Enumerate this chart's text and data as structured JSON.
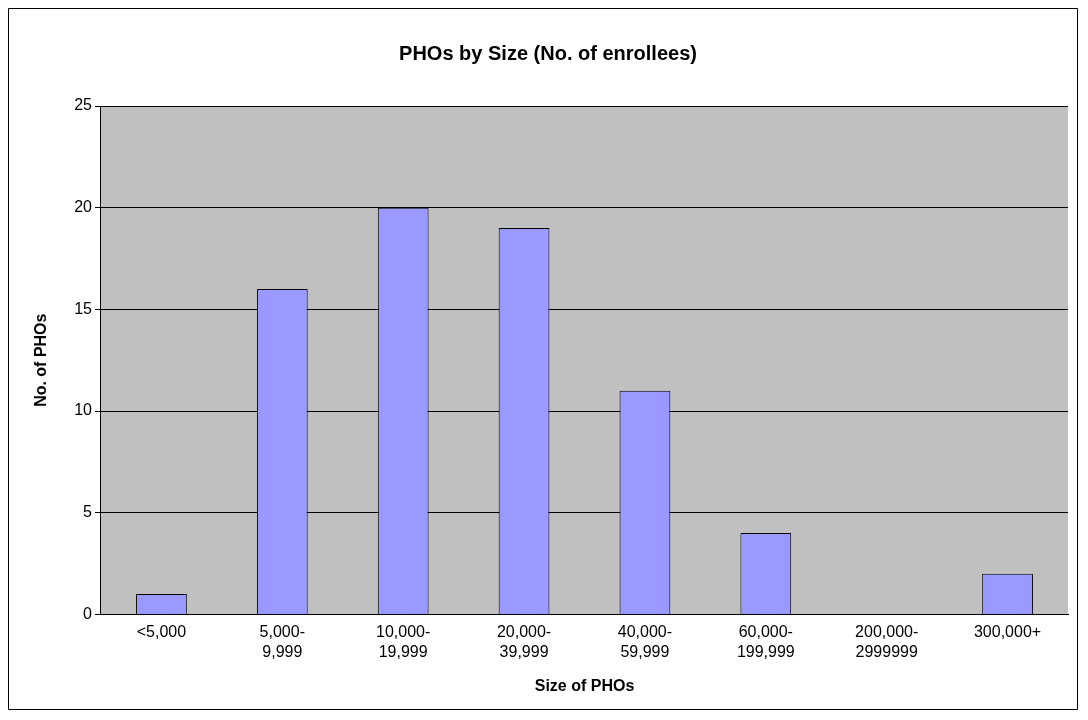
{
  "chart_data": {
    "type": "bar",
    "title": "PHOs by Size (No. of enrollees)",
    "xlabel": "Size of PHOs",
    "ylabel": "No. of PHOs",
    "categories": [
      "<5,000",
      "5,000-9,999",
      "10,000-19,999",
      "20,000-39,999",
      "40,000-59,999",
      "60,000-199,999",
      "200,000-2999999",
      "300,000+"
    ],
    "values": [
      1,
      16,
      20,
      19,
      11,
      4,
      0,
      2
    ],
    "color": "#9999ff",
    "ylim": [
      0,
      25
    ],
    "yticks": [
      0,
      5,
      10,
      15,
      20,
      25
    ],
    "grid": "y",
    "legend": false
  }
}
